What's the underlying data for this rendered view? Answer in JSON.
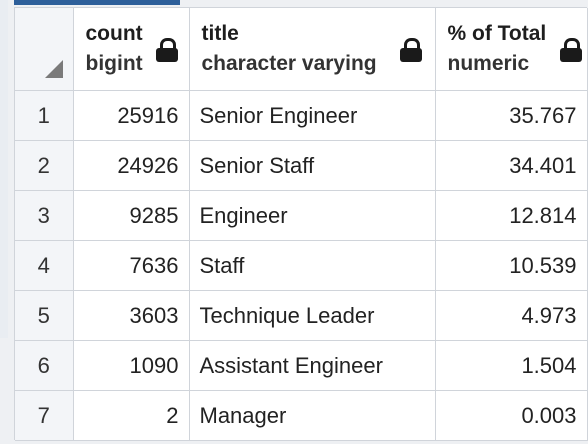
{
  "columns": [
    {
      "name": "count",
      "type": "bigint"
    },
    {
      "name": "title",
      "type": "character varying"
    },
    {
      "name": "% of Total",
      "type": "numeric"
    }
  ],
  "rows": [
    {
      "index": "1",
      "count": "25916",
      "title": "Senior Engineer",
      "pct": "35.767"
    },
    {
      "index": "2",
      "count": "24926",
      "title": "Senior Staff",
      "pct": "34.401"
    },
    {
      "index": "3",
      "count": "9285",
      "title": "Engineer",
      "pct": "12.814"
    },
    {
      "index": "4",
      "count": "7636",
      "title": "Staff",
      "pct": "10.539"
    },
    {
      "index": "5",
      "count": "3603",
      "title": "Technique Leader",
      "pct": "4.973"
    },
    {
      "index": "6",
      "count": "1090",
      "title": "Assistant Engineer",
      "pct": "1.504"
    },
    {
      "index": "7",
      "count": "2",
      "title": "Manager",
      "pct": "0.003"
    }
  ],
  "icons": {
    "column_lock": "lock-icon",
    "select_all_corner": "corner-triangle-icon"
  },
  "colors": {
    "accent": "#2d5f9a",
    "grid_line": "#d0d4da",
    "row_header_bg": "#f3f5f8"
  }
}
